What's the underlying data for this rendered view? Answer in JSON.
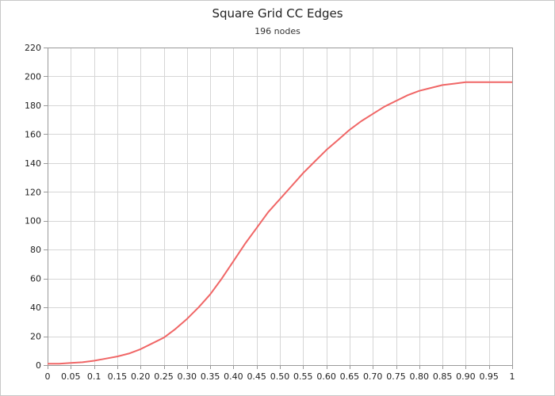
{
  "chart_data": {
    "type": "line",
    "title": "Square Grid CC Edges",
    "subtitle": "196 nodes",
    "xlabel": "",
    "ylabel": "",
    "xlim": [
      0,
      1
    ],
    "ylim": [
      0,
      220
    ],
    "grid": true,
    "x_tick_labels": [
      "0",
      "0.05",
      "0.1",
      "0.15",
      "0.20",
      "0.25",
      "0.30",
      "0.35",
      "0.40",
      "0.45",
      "0.50",
      "0.55",
      "0.60",
      "0.65",
      "0.70",
      "0.75",
      "0.80",
      "0.85",
      "0.90",
      "0.95",
      "1"
    ],
    "y_tick_labels": [
      "0",
      "20",
      "40",
      "60",
      "80",
      "100",
      "120",
      "140",
      "160",
      "180",
      "200",
      "220"
    ],
    "series": [
      {
        "color": "#f06666",
        "x": [
          0,
          0.025,
          0.05,
          0.075,
          0.1,
          0.125,
          0.15,
          0.175,
          0.2,
          0.225,
          0.25,
          0.275,
          0.3,
          0.325,
          0.35,
          0.375,
          0.4,
          0.425,
          0.45,
          0.475,
          0.5,
          0.525,
          0.55,
          0.575,
          0.6,
          0.625,
          0.65,
          0.675,
          0.7,
          0.725,
          0.75,
          0.775,
          0.8,
          0.825,
          0.85,
          0.875,
          0.9,
          0.925,
          0.95,
          0.975,
          1
        ],
        "y": [
          1,
          1,
          1.5,
          2,
          3,
          4.5,
          6,
          8,
          11,
          15,
          19,
          25,
          32,
          40,
          49,
          60,
          72,
          84,
          95,
          106,
          115,
          124,
          133,
          141,
          149,
          156,
          163,
          169,
          174,
          179,
          183,
          187,
          190,
          192,
          194,
          195,
          196,
          196,
          196,
          196,
          196
        ]
      }
    ]
  }
}
